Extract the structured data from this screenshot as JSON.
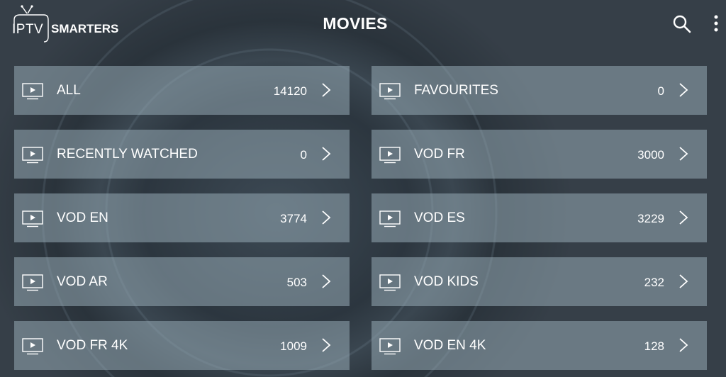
{
  "header": {
    "logo_text": "IPTV SMARTERS",
    "title": "MOVIES",
    "search_icon": "search-icon",
    "menu_icon": "more-vertical-icon"
  },
  "categories": [
    {
      "label": "ALL",
      "count": "14120"
    },
    {
      "label": "FAVOURITES",
      "count": "0"
    },
    {
      "label": "RECENTLY WATCHED",
      "count": "0"
    },
    {
      "label": "VOD FR",
      "count": "3000"
    },
    {
      "label": "VOD EN",
      "count": "3774"
    },
    {
      "label": "VOD ES",
      "count": "3229"
    },
    {
      "label": "VOD AR",
      "count": "503"
    },
    {
      "label": "VOD KIDS",
      "count": "232"
    },
    {
      "label": "VOD FR 4K",
      "count": "1009"
    },
    {
      "label": "VOD EN 4K",
      "count": "128"
    }
  ]
}
